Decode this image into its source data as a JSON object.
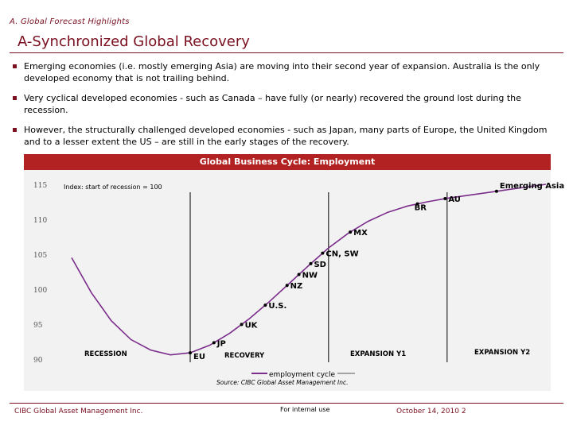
{
  "header": {
    "section": "A. Global Forecast Highlights",
    "title": "A-Synchronized Global Recovery"
  },
  "bullets": [
    "Emerging economies (i.e. mostly emerging Asia) are moving into their second year of expansion.  Australia is the only developed economy that is not trailing behind.",
    "Very cyclical developed economies  - such as Canada – have fully (or nearly) recovered the ground lost during the recession.",
    "However, the structurally challenged developed economies  - such as Japan, many parts of Europe, the United Kingdom and to a lesser extent the US – are still in the early stages of the recovery."
  ],
  "chart_data": {
    "type": "line",
    "title": "Global Business Cycle: Employment",
    "index_note": "Index: start of recession = 100",
    "ylim": [
      90,
      115
    ],
    "yticks": [
      "115",
      "110",
      "105",
      "100",
      "95",
      "90"
    ],
    "series": [
      {
        "name": "employment cycle",
        "color": "#7b2d8b",
        "x": [
          0,
          0.5,
          1,
          1.5,
          2,
          2.5,
          3,
          3.5,
          4,
          4.5,
          5,
          5.5,
          6,
          6.5,
          7,
          7.5,
          8,
          8.5,
          9,
          9.5,
          10,
          10.5,
          11,
          11.5,
          12
        ],
        "y": [
          104.5,
          99.5,
          95.5,
          92.8,
          91.3,
          90.6,
          90.9,
          92.0,
          93.7,
          95.8,
          98.2,
          100.8,
          103.4,
          105.9,
          108.0,
          109.7,
          111.0,
          111.9,
          112.5,
          113.0,
          113.4,
          113.8,
          114.2,
          114.6,
          115.0
        ]
      }
    ],
    "phases": [
      "RECESSION",
      "RECOVERY",
      "EXPANSION Y1",
      "EXPANSION Y2"
    ],
    "phase_dividers_x": [
      3.0,
      6.5,
      9.5
    ],
    "points": [
      {
        "label": "EU",
        "x": 3.0
      },
      {
        "label": "JP",
        "x": 3.6
      },
      {
        "label": "UK",
        "x": 4.3
      },
      {
        "label": "U.S.",
        "x": 4.9
      },
      {
        "label": "NZ",
        "x": 5.45
      },
      {
        "label": "NW",
        "x": 5.75
      },
      {
        "label": "SD",
        "x": 6.05
      },
      {
        "label": "CN, SW",
        "x": 6.35
      },
      {
        "label": "MX",
        "x": 7.05
      },
      {
        "label": "BR",
        "x": 8.75
      },
      {
        "label": "AU",
        "x": 9.45
      },
      {
        "label": "Emerging Asia",
        "x": 10.75
      }
    ],
    "legend": "employment cycle",
    "source": "Source: CIBC Global Asset Management Inc."
  },
  "footer": {
    "company": "CIBC Global Asset Management Inc.",
    "note": "For internal use",
    "date": "October 14, 2010",
    "page": "2"
  }
}
